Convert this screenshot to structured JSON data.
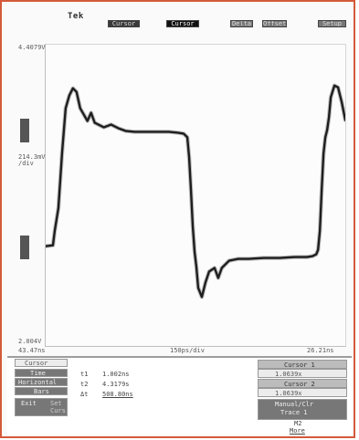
{
  "top": {
    "brand": "Tek",
    "buttons": [
      {
        "label": "Cursor",
        "style": "dark"
      },
      {
        "label": "Cursor",
        "style": "active"
      },
      {
        "label": "Delta",
        "style": "light"
      },
      {
        "label": "Offset",
        "style": "light"
      },
      {
        "label": "Setup",
        "style": "light"
      }
    ]
  },
  "screen": {
    "top_left_label": "4.4079V",
    "mid_left_label_1": "214.3mV",
    "mid_left_label_2": "/div",
    "bottom_left_label": "2.004V",
    "lower_left_time": "43.47ns",
    "lower_center_time": "150ps/div",
    "lower_right_time": "26.21ns"
  },
  "bottom_panel": {
    "left_header": "Cursor",
    "left_sub1": "Time",
    "left_sub2": "Horizontal",
    "left_sub3": "Bars",
    "left_exit": "Exit",
    "left_menu1": "Set",
    "left_menu2": "Curs",
    "readout_1_prefix": "t1",
    "readout_1_value": "1.002ns",
    "readout_2_prefix": "t2",
    "readout_2_value": "4.3179s",
    "readout_3_prefix": "Δt",
    "readout_3_value": "508.80ns",
    "right_box1_title": "Cursor 1",
    "right_box1_value": "1.0639x",
    "right_box2_title": "Cursor 2",
    "right_box2_value": "1.0639x",
    "right_manual": "Manual/Clr",
    "right_trace": "Trace 1",
    "right_m2": "M2",
    "right_more": "More"
  },
  "trace": {
    "points": [
      [
        0,
        222
      ],
      [
        8,
        221
      ],
      [
        10,
        205
      ],
      [
        14,
        180
      ],
      [
        18,
        120
      ],
      [
        22,
        70
      ],
      [
        26,
        56
      ],
      [
        30,
        48
      ],
      [
        34,
        52
      ],
      [
        38,
        70
      ],
      [
        42,
        77
      ],
      [
        46,
        84
      ],
      [
        50,
        75
      ],
      [
        54,
        86
      ],
      [
        58,
        88
      ],
      [
        64,
        91
      ],
      [
        72,
        88
      ],
      [
        80,
        92
      ],
      [
        88,
        95
      ],
      [
        98,
        96
      ],
      [
        110,
        96
      ],
      [
        122,
        96
      ],
      [
        136,
        96
      ],
      [
        146,
        97
      ],
      [
        152,
        98
      ],
      [
        156,
        102
      ],
      [
        158,
        124
      ],
      [
        160,
        160
      ],
      [
        162,
        200
      ],
      [
        164,
        228
      ],
      [
        166,
        245
      ],
      [
        168,
        268
      ],
      [
        172,
        278
      ],
      [
        176,
        262
      ],
      [
        180,
        250
      ],
      [
        186,
        246
      ],
      [
        190,
        257
      ],
      [
        194,
        246
      ],
      [
        202,
        238
      ],
      [
        212,
        236
      ],
      [
        224,
        236
      ],
      [
        240,
        235
      ],
      [
        258,
        235
      ],
      [
        274,
        234
      ],
      [
        288,
        234
      ],
      [
        294,
        233
      ],
      [
        298,
        231
      ],
      [
        300,
        226
      ],
      [
        302,
        205
      ],
      [
        304,
        160
      ],
      [
        306,
        120
      ],
      [
        308,
        102
      ],
      [
        310,
        94
      ],
      [
        312,
        80
      ],
      [
        314,
        58
      ],
      [
        318,
        45
      ],
      [
        322,
        47
      ],
      [
        326,
        63
      ],
      [
        330,
        83
      ]
    ]
  }
}
